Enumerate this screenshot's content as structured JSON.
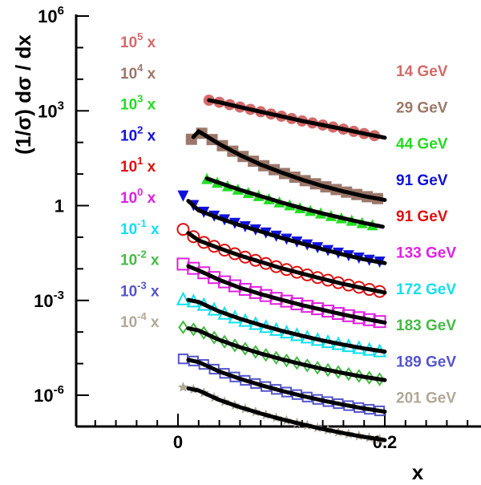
{
  "chart_data": {
    "type": "scatter",
    "xlabel": "x",
    "ylabel": "(1/σ) dσ / dx",
    "xlim": [
      -0.1,
      0.3
    ],
    "ylim_log10": [
      -7.5,
      6
    ],
    "y_scale": "log",
    "x_ticks": [
      {
        "value": 0,
        "label": "0"
      },
      {
        "value": 0.2,
        "label": "0.2"
      }
    ],
    "y_ticks": [
      {
        "exp": 6,
        "label_base": "10",
        "label_exp": "6"
      },
      {
        "exp": 3,
        "label_base": "10",
        "label_exp": "3"
      },
      {
        "exp": 0,
        "label_base": "1",
        "label_exp": ""
      },
      {
        "exp": -3,
        "label_base": "10",
        "label_exp": "-3"
      },
      {
        "exp": -6,
        "label_base": "10",
        "label_exp": "-6"
      }
    ],
    "series": [
      {
        "name": "14 GeV",
        "scale_base": "10",
        "scale_exp": "5",
        "scale_suffix": " x",
        "color": "#d46a6a",
        "marker": "circle",
        "x_start": 0.03,
        "fit_start": 0.03
      },
      {
        "name": "29 GeV",
        "scale_base": "10",
        "scale_exp": "4",
        "scale_suffix": " x",
        "color": "#9c786a",
        "marker": "square",
        "x_start": 0.013,
        "fit_start": 0.015
      },
      {
        "name": "44 GeV",
        "scale_base": "10",
        "scale_exp": "3",
        "scale_suffix": " x",
        "color": "#22dd22",
        "marker": "triangle-up",
        "x_start": 0.028,
        "fit_start": 0.028
      },
      {
        "name": "91 GeV",
        "scale_base": "10",
        "scale_exp": "2",
        "scale_suffix": " x",
        "color": "#1010dd",
        "marker": "triangle-down",
        "x_start": 0.005,
        "fit_start": 0.01
      },
      {
        "name": "91 GeV",
        "scale_base": "10",
        "scale_exp": "1",
        "scale_suffix": " x",
        "color": "#e01010",
        "marker": "circle-open",
        "x_start": 0.005,
        "fit_start": 0.01
      },
      {
        "name": "133 GeV",
        "scale_base": "10",
        "scale_exp": "0",
        "scale_suffix": " x",
        "color": "#e020e0",
        "marker": "square-open",
        "x_start": 0.005,
        "fit_start": 0.01
      },
      {
        "name": "172 GeV",
        "scale_base": "10",
        "scale_exp": "-1",
        "scale_suffix": " x",
        "color": "#10e0ee",
        "marker": "triangle-open",
        "x_start": 0.005,
        "fit_start": 0.01
      },
      {
        "name": "183 GeV",
        "scale_base": "10",
        "scale_exp": "-2",
        "scale_suffix": " x",
        "color": "#44bb44",
        "marker": "diamond-open",
        "x_start": 0.005,
        "fit_start": 0.01
      },
      {
        "name": "189 GeV",
        "scale_base": "10",
        "scale_exp": "-3",
        "scale_suffix": " x",
        "color": "#5555cc",
        "marker": "cross-open",
        "x_start": 0.005,
        "fit_start": 0.01
      },
      {
        "name": "201 GeV",
        "scale_base": "10",
        "scale_exp": "-4",
        "scale_suffix": " x",
        "color": "#b0a898",
        "marker": "star",
        "x_start": 0.005,
        "fit_start": 0.01
      }
    ],
    "curves": [
      {
        "log10_y": [
          3.4,
          3.27,
          3.12,
          2.97,
          2.83,
          2.68,
          2.55,
          2.42,
          2.28,
          2.15
        ],
        "start_log10": 3.3
      },
      {
        "log10_y": [
          2.35,
          1.95,
          1.6,
          1.3,
          1.05,
          0.82,
          0.62,
          0.45,
          0.3,
          0.18
        ],
        "start_log10": 2.1
      },
      {
        "log10_y": [
          0.95,
          0.72,
          0.5,
          0.3,
          0.1,
          -0.08,
          -0.25,
          -0.4,
          -0.55,
          -0.68
        ],
        "start_log10": 1.05
      },
      {
        "log10_y": [
          -0.15,
          -0.4,
          -0.62,
          -0.82,
          -1.02,
          -1.2,
          -1.38,
          -1.55,
          -1.7,
          -1.82
        ],
        "start_log10": 0.3
      },
      {
        "log10_y": [
          -1.1,
          -1.35,
          -1.58,
          -1.78,
          -1.98,
          -2.15,
          -2.32,
          -2.48,
          -2.62,
          -2.75
        ],
        "start_log10": -0.75
      },
      {
        "log10_y": [
          -2.05,
          -2.35,
          -2.6,
          -2.8,
          -2.98,
          -3.15,
          -3.3,
          -3.45,
          -3.58,
          -3.7
        ],
        "start_log10": -1.85
      },
      {
        "log10_y": [
          -3.05,
          -3.35,
          -3.58,
          -3.78,
          -3.96,
          -4.12,
          -4.27,
          -4.4,
          -4.52,
          -4.62
        ],
        "start_log10": -2.95
      },
      {
        "log10_y": [
          -3.95,
          -4.25,
          -4.48,
          -4.68,
          -4.86,
          -5.02,
          -5.17,
          -5.3,
          -5.42,
          -5.52
        ],
        "start_log10": -3.85
      },
      {
        "log10_y": [
          -4.95,
          -5.25,
          -5.48,
          -5.68,
          -5.86,
          -6.02,
          -6.17,
          -6.3,
          -6.42,
          -6.52
        ],
        "start_log10": -4.85
      },
      {
        "log10_y": [
          -5.85,
          -6.15,
          -6.38,
          -6.58,
          -6.76,
          -6.92,
          -7.07,
          -7.2,
          -7.32,
          -7.42
        ],
        "start_log10": -5.75
      }
    ]
  }
}
